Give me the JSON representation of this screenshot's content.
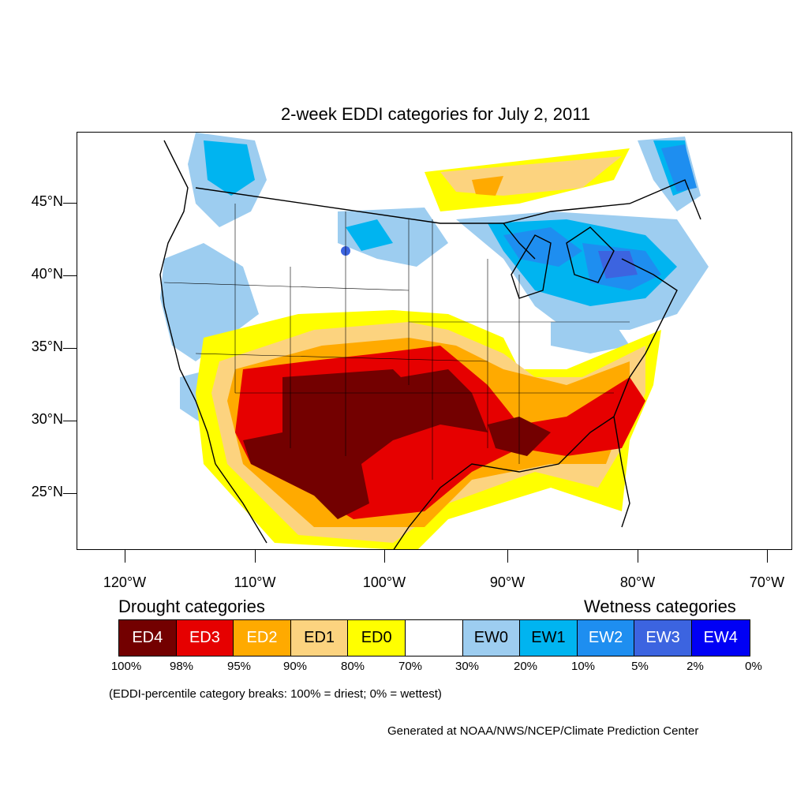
{
  "title": "2-week EDDI categories for July 2, 2011",
  "lat_labels": [
    "45°N",
    "40°N",
    "35°N",
    "30°N",
    "25°N"
  ],
  "lon_labels": [
    "120°W",
    "110°W",
    "100°W",
    "90°W",
    "80°W",
    "70°W"
  ],
  "drought_title": "Drought categories",
  "wetness_title": "Wetness categories",
  "legend": [
    {
      "label": "ED4",
      "color": "#730000",
      "text_color": "#ffffff"
    },
    {
      "label": "ED3",
      "color": "#e60000",
      "text_color": "#ffffff"
    },
    {
      "label": "ED2",
      "color": "#ffaa00",
      "text_color": "#ffffff"
    },
    {
      "label": "ED1",
      "color": "#fcd37f",
      "text_color": "#000000"
    },
    {
      "label": "ED0",
      "color": "#ffff00",
      "text_color": "#000000"
    },
    {
      "label": "",
      "color": "#ffffff",
      "text_color": "#000000"
    },
    {
      "label": "EW0",
      "color": "#9dcdf0",
      "text_color": "#000000"
    },
    {
      "label": "EW1",
      "color": "#00b4f0",
      "text_color": "#000000"
    },
    {
      "label": "EW2",
      "color": "#1e8ef0",
      "text_color": "#ffffff"
    },
    {
      "label": "EW3",
      "color": "#3c64e0",
      "text_color": "#ffffff"
    },
    {
      "label": "EW4",
      "color": "#0000f5",
      "text_color": "#ffffff"
    }
  ],
  "percentiles": [
    "100%",
    "98%",
    "95%",
    "90%",
    "80%",
    "70%",
    "30%",
    "20%",
    "10%",
    "5%",
    "2%",
    "0%"
  ],
  "note": "(EDDI-percentile category breaks: 100% = driest; 0% = wettest)",
  "credit": "Generated at NOAA/NWS/NCEP/Climate Prediction Center"
}
